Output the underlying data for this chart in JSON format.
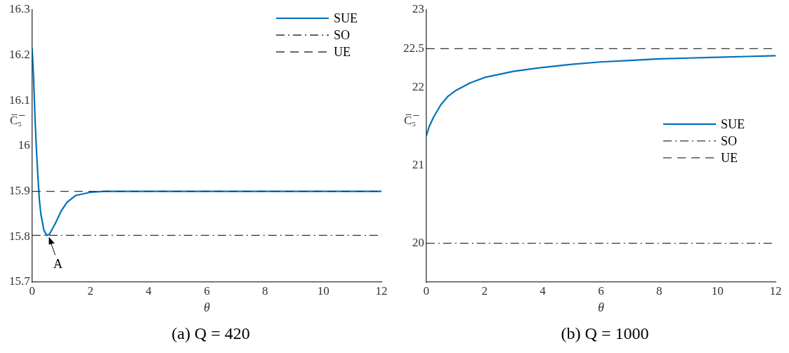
{
  "chart_data": [
    {
      "type": "line",
      "title": "(a) Q = 420",
      "xlabel": "θ",
      "ylabel": "C̅₅̅",
      "xlim": [
        0,
        12
      ],
      "xticks": [
        0,
        2,
        4,
        6,
        8,
        10,
        12
      ],
      "ylim": [
        15.7,
        16.3
      ],
      "yticks": [
        15.7,
        15.8,
        15.9,
        16,
        16.1,
        16.2,
        16.3
      ],
      "grid": false,
      "legend": "top right",
      "marker": "none",
      "series": [
        {
          "name": "SUE",
          "color": "#0072bd",
          "line_style": "solid",
          "x": [
            0,
            0.05,
            0.1,
            0.15,
            0.2,
            0.25,
            0.3,
            0.4,
            0.5,
            0.6,
            0.8,
            1,
            1.2,
            1.5,
            2,
            2.5,
            3,
            12
          ],
          "values": [
            16.215,
            16.15,
            16.06,
            15.99,
            15.93,
            15.88,
            15.85,
            15.815,
            15.803,
            15.806,
            15.83,
            15.857,
            15.876,
            15.891,
            15.898,
            15.9,
            15.9,
            15.9
          ]
        },
        {
          "name": "SO",
          "color": "#333333",
          "line_style": "dashdot",
          "x": [
            0,
            12
          ],
          "values": [
            15.803,
            15.803
          ]
        },
        {
          "name": "UE",
          "color": "#333333",
          "line_style": "dashed",
          "x": [
            0,
            12
          ],
          "values": [
            15.9,
            15.9
          ]
        }
      ],
      "annotations": [
        {
          "text": "A",
          "x": 0.55,
          "y": 15.803
        }
      ]
    },
    {
      "type": "line",
      "title": "(b) Q = 1000",
      "xlabel": "θ",
      "ylabel": "C̅₅̅",
      "xlim": [
        0,
        12
      ],
      "xticks": [
        0,
        2,
        4,
        6,
        8,
        10,
        12
      ],
      "ylim": [
        19.5,
        23
      ],
      "yticks": [
        20,
        21,
        22,
        22.5,
        23
      ],
      "grid": false,
      "legend": "right",
      "marker": "none",
      "series": [
        {
          "name": "SUE",
          "color": "#0072bd",
          "line_style": "solid",
          "x": [
            0,
            0.1,
            0.25,
            0.5,
            0.75,
            1,
            1.5,
            2,
            3,
            4,
            5,
            6,
            7,
            8,
            9,
            10,
            11,
            12
          ],
          "values": [
            21.38,
            21.5,
            21.62,
            21.78,
            21.89,
            21.96,
            22.06,
            22.13,
            22.21,
            22.26,
            22.3,
            22.33,
            22.35,
            22.37,
            22.38,
            22.39,
            22.4,
            22.41
          ]
        },
        {
          "name": "SO",
          "color": "#333333",
          "line_style": "dashdot",
          "x": [
            0,
            12
          ],
          "values": [
            20,
            20
          ]
        },
        {
          "name": "UE",
          "color": "#333333",
          "line_style": "dashed",
          "x": [
            0,
            12
          ],
          "values": [
            22.5,
            22.5
          ]
        }
      ]
    }
  ]
}
